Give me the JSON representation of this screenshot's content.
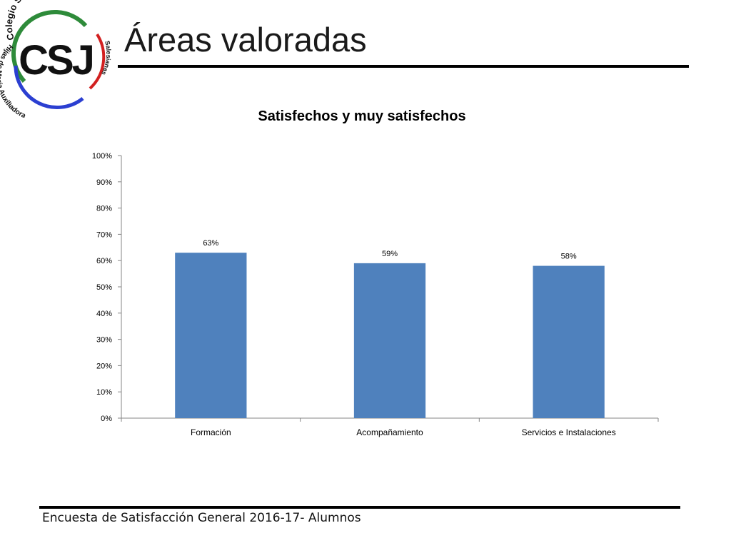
{
  "slide": {
    "title": "Áreas valoradas",
    "footer": "Encuesta  de Satisfacción General 2016-17- Alumnos"
  },
  "logo": {
    "text_top": "Colegio San José",
    "text_left": "Hijas de María Auxiliadora",
    "text_right": "Salesianas",
    "monogram": "CSJ",
    "colors": {
      "green": "#2e8b3a",
      "blue": "#2b3fd1",
      "red": "#d22020",
      "text": "#111111"
    }
  },
  "chart_data": {
    "type": "bar",
    "title": "Satisfechos y muy satisfechos",
    "categories": [
      "Formación",
      "Acompañamiento",
      "Servicios e Instalaciones"
    ],
    "values": [
      63,
      59,
      58
    ],
    "data_labels": [
      "63%",
      "59%",
      "58%"
    ],
    "ylim": [
      0,
      100
    ],
    "yticks": [
      0,
      10,
      20,
      30,
      40,
      50,
      60,
      70,
      80,
      90,
      100
    ],
    "ytick_labels": [
      "0%",
      "10%",
      "20%",
      "30%",
      "40%",
      "50%",
      "60%",
      "70%",
      "80%",
      "90%",
      "100%"
    ],
    "xlabel": "",
    "ylabel": "",
    "grid": false,
    "legend": "none",
    "bar_color": "#4f81bd"
  }
}
